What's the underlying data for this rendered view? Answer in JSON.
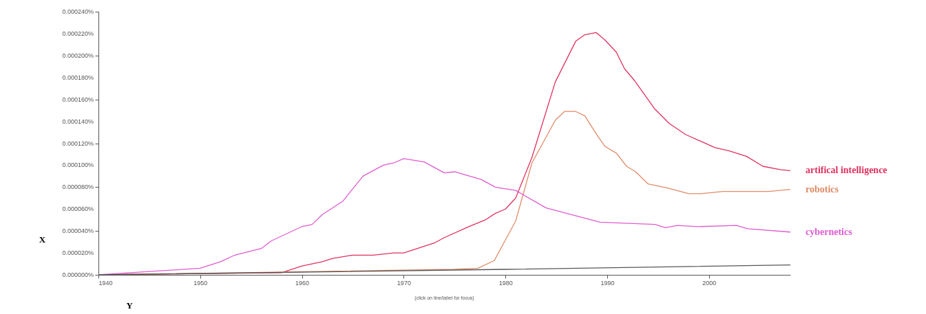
{
  "chart_data": {
    "type": "line",
    "xlabel": "Y",
    "ylabel": "X",
    "annotations": [
      "(click on line/label for focus)"
    ],
    "xlim": [
      1940,
      2008
    ],
    "xticks": [
      1940,
      1950,
      1960,
      1970,
      1980,
      1990,
      2000
    ],
    "ylim": [
      0,
      0.00024
    ],
    "yticks": [
      {
        "value": 0,
        "label": "0.000000%"
      },
      {
        "value": 2e-05,
        "label": "0.000020%"
      },
      {
        "value": 4e-05,
        "label": "0.000040%"
      },
      {
        "value": 6e-05,
        "label": "0.000060%"
      },
      {
        "value": 8e-05,
        "label": "0.000080%"
      },
      {
        "value": 0.0001,
        "label": "0.000100%"
      },
      {
        "value": 0.00012,
        "label": "0.000120%"
      },
      {
        "value": 0.00014,
        "label": "0.000140%"
      },
      {
        "value": 0.00016,
        "label": "0.000160%"
      },
      {
        "value": 0.00018,
        "label": "0.000180%"
      },
      {
        "value": 0.0002,
        "label": "0.000200%"
      },
      {
        "value": 0.00022,
        "label": "0.000220%"
      },
      {
        "value": 0.00024,
        "label": "0.000240%"
      }
    ],
    "series": [
      {
        "name": "artifical intelligence",
        "color": "#e0305e",
        "x": [
          1940,
          1958,
          1960,
          1962,
          1963,
          1965,
          1967,
          1969,
          1970,
          1973,
          1974,
          1976.4,
          1978,
          1979,
          1980,
          1981,
          1982.6,
          1984.9,
          1986.9,
          1987.8,
          1988.9,
          1989.8,
          1990.9,
          1991.7,
          1992.7,
          1994.7,
          1996.1,
          1997.7,
          2000.6,
          2002,
          2003.7,
          2005.3,
          2007,
          2008
        ],
        "values": [
          0,
          2e-06,
          8e-06,
          1.2e-05,
          1.5e-05,
          1.8e-05,
          1.8e-05,
          2e-05,
          2e-05,
          2.9e-05,
          3.4e-05,
          4.4e-05,
          5e-05,
          5.6e-05,
          6e-05,
          7e-05,
          0.000107,
          0.000176,
          0.000213,
          0.000219,
          0.000221,
          0.000214,
          0.000203,
          0.000188,
          0.000177,
          0.000151,
          0.000138,
          0.000128,
          0.000116,
          0.000113,
          0.000108,
          9.9e-05,
          9.6e-05,
          9.5e-05
        ]
      },
      {
        "name": "robotics",
        "color": "#e08a66",
        "x": [
          1940,
          1975,
          1977.3,
          1978.9,
          1981,
          1982.6,
          1984.9,
          1985.8,
          1986.9,
          1987.8,
          1989.1,
          1989.8,
          1990.9,
          1991.9,
          1992.8,
          1994,
          1996,
          1998,
          1999.2,
          2001.4,
          2003.7,
          2005.9,
          2008
        ],
        "values": [
          0,
          5e-06,
          6e-06,
          1.3e-05,
          4.9e-05,
          0.000102,
          0.000141,
          0.000149,
          0.000149,
          0.000145,
          0.000126,
          0.000117,
          0.000111,
          9.9e-05,
          9.4e-05,
          8.3e-05,
          7.9e-05,
          7.4e-05,
          7.4e-05,
          7.6e-05,
          7.6e-05,
          7.6e-05,
          7.8e-05
        ]
      },
      {
        "name": "cybernetics",
        "color": "#e05ad0",
        "x": [
          1940,
          1945,
          1950,
          1952,
          1953.4,
          1956,
          1957,
          1960,
          1961,
          1962,
          1964,
          1966,
          1968,
          1969,
          1970,
          1972,
          1974,
          1975,
          1977.6,
          1979,
          1981,
          1984,
          1989.3,
          1994.7,
          1995.7,
          1996.9,
          1999,
          2002.7,
          2003.8,
          2008
        ],
        "values": [
          0,
          3e-06,
          6e-06,
          1.2e-05,
          1.8e-05,
          2.4e-05,
          3.1e-05,
          4.4e-05,
          4.6e-05,
          5.5e-05,
          6.7e-05,
          9e-05,
          0.0001,
          0.000102,
          0.000106,
          0.000103,
          9.3e-05,
          9.4e-05,
          8.7e-05,
          8e-05,
          7.7e-05,
          6.1e-05,
          4.8e-05,
          4.6e-05,
          4.3e-05,
          4.5e-05,
          4.4e-05,
          4.5e-05,
          4.2e-05,
          3.9e-05
        ]
      },
      {
        "color": "#555555",
        "x": [
          1940,
          1980,
          2008
        ],
        "values": [
          0,
          5e-06,
          9e-06
        ]
      }
    ]
  }
}
